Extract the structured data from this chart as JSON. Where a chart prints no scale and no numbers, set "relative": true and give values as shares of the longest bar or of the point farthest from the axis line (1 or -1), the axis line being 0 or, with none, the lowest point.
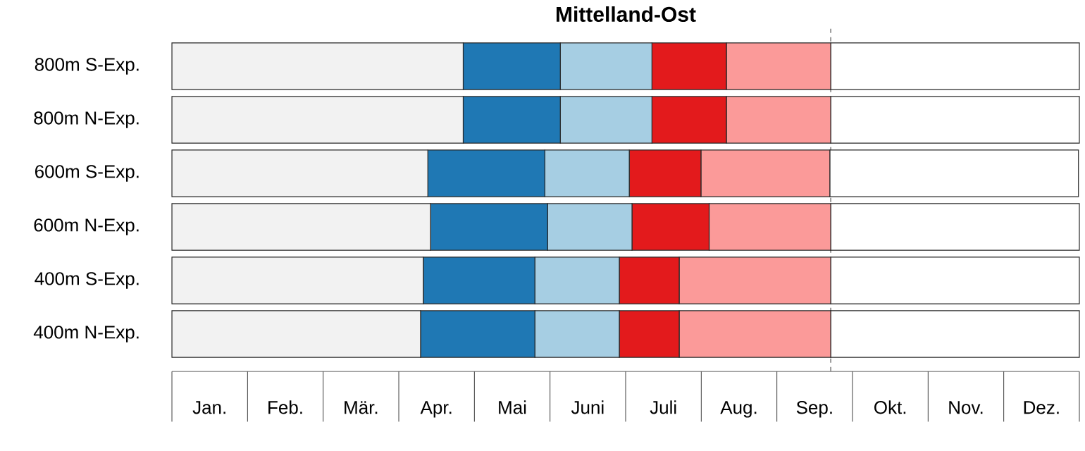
{
  "chart_data": {
    "type": "bar",
    "orientation": "horizontal",
    "stacked": true,
    "relative": true,
    "title": "Mittelland-Ost",
    "categories": [
      "800m S-Exp.",
      "800m N-Exp.",
      "600m S-Exp.",
      "600m N-Exp.",
      "400m S-Exp.",
      "400m N-Exp."
    ],
    "series": [
      {
        "color": "#f2f2f2",
        "values": [
          0.321,
          0.321,
          0.282,
          0.285,
          0.277,
          0.274
        ]
      },
      {
        "color": "#1f78b4",
        "values": [
          0.107,
          0.107,
          0.129,
          0.129,
          0.123,
          0.126
        ]
      },
      {
        "color": "#a6cee3",
        "values": [
          0.101,
          0.101,
          0.093,
          0.093,
          0.093,
          0.093
        ]
      },
      {
        "color": "#e31a1c",
        "values": [
          0.082,
          0.082,
          0.079,
          0.085,
          0.066,
          0.066
        ]
      },
      {
        "color": "#fb9a99",
        "values": [
          0.115,
          0.115,
          0.142,
          0.134,
          0.167,
          0.167
        ]
      },
      {
        "color": "#ffffff",
        "values": [
          0.274,
          0.274,
          0.274,
          0.274,
          0.274,
          0.274
        ]
      }
    ],
    "annotations": [
      "Jan.",
      "Feb.",
      "Mär.",
      "Apr.",
      "Mai",
      "Juni",
      "Juli",
      "Aug.",
      "Sep.",
      "Okt.",
      "Nov.",
      "Dez."
    ],
    "ref_lines": [
      {
        "axis": "x",
        "value": 0.726,
        "color": "#555555",
        "line_style": "dashed"
      }
    ]
  }
}
